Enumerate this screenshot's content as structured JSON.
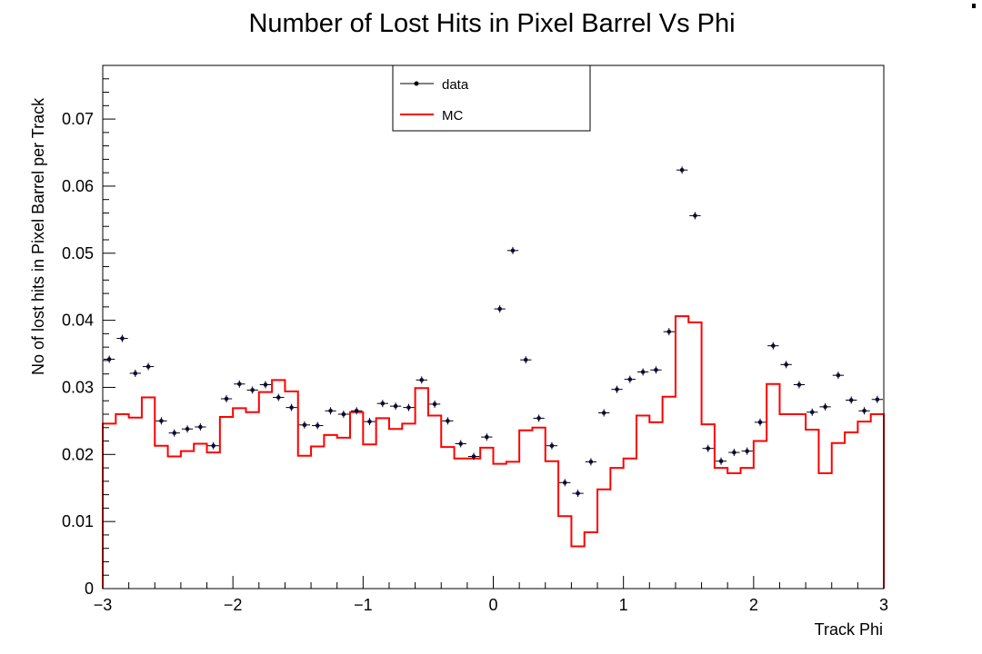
{
  "chart_data": {
    "type": "scatter",
    "title": "Number of Lost Hits in Pixel Barrel Vs Phi",
    "xlabel": "Track Phi",
    "ylabel": "No of lost hits in Pixel Barrel per Track",
    "xlim": [
      -3,
      3
    ],
    "ylim": [
      0,
      0.078
    ],
    "x_ticks": [
      -3,
      -2,
      -1,
      0,
      1,
      2,
      3
    ],
    "x_tick_labels": [
      "−3",
      "−2",
      "−1",
      "0",
      "1",
      "2",
      "3"
    ],
    "y_ticks": [
      0,
      0.01,
      0.02,
      0.03,
      0.04,
      0.05,
      0.06,
      0.07
    ],
    "y_tick_labels": [
      "0",
      "0.01",
      "0.02",
      "0.03",
      "0.04",
      "0.05",
      "0.06",
      "0.07"
    ],
    "grid": false,
    "legend_position": "top-center",
    "bin_edges_range": [
      -3,
      3
    ],
    "bin_count": 60,
    "series": [
      {
        "name": "data",
        "style": "markers-with-errors",
        "color": "#000000",
        "values": [
          0.0342,
          0.0373,
          0.0321,
          0.0331,
          0.025,
          0.0232,
          0.0238,
          0.0241,
          0.0213,
          0.0283,
          0.0305,
          0.0296,
          0.0304,
          0.0285,
          0.027,
          0.0244,
          0.0243,
          0.0265,
          0.026,
          0.0265,
          0.0249,
          0.0276,
          0.0272,
          0.027,
          0.0311,
          0.0275,
          0.025,
          0.0216,
          0.0197,
          0.0226,
          0.0417,
          0.0504,
          0.0341,
          0.0254,
          0.0213,
          0.0158,
          0.0142,
          0.0189,
          0.0262,
          0.0297,
          0.0312,
          0.0323,
          0.0326,
          0.0383,
          0.0624,
          0.0556,
          0.0209,
          0.019,
          0.0203,
          0.0205,
          0.0248,
          0.0362,
          0.0334,
          0.0304,
          0.0263,
          0.0271,
          0.0318,
          0.0281,
          0.0265,
          0.0282
        ]
      },
      {
        "name": "MC",
        "style": "step",
        "color": "#ff0000",
        "values": [
          0.0246,
          0.026,
          0.0255,
          0.0285,
          0.0213,
          0.0197,
          0.0205,
          0.0216,
          0.0203,
          0.0256,
          0.0269,
          0.0263,
          0.0293,
          0.0311,
          0.0294,
          0.0198,
          0.0212,
          0.0229,
          0.0225,
          0.0263,
          0.0215,
          0.0254,
          0.0238,
          0.0246,
          0.0299,
          0.0258,
          0.0211,
          0.0194,
          0.0194,
          0.021,
          0.0186,
          0.0189,
          0.0236,
          0.024,
          0.019,
          0.0108,
          0.0063,
          0.0084,
          0.0148,
          0.018,
          0.0194,
          0.0258,
          0.0248,
          0.0286,
          0.0406,
          0.0397,
          0.0245,
          0.018,
          0.0172,
          0.018,
          0.022,
          0.0305,
          0.026,
          0.026,
          0.0237,
          0.0172,
          0.0217,
          0.0233,
          0.0249,
          0.026
        ]
      }
    ]
  }
}
